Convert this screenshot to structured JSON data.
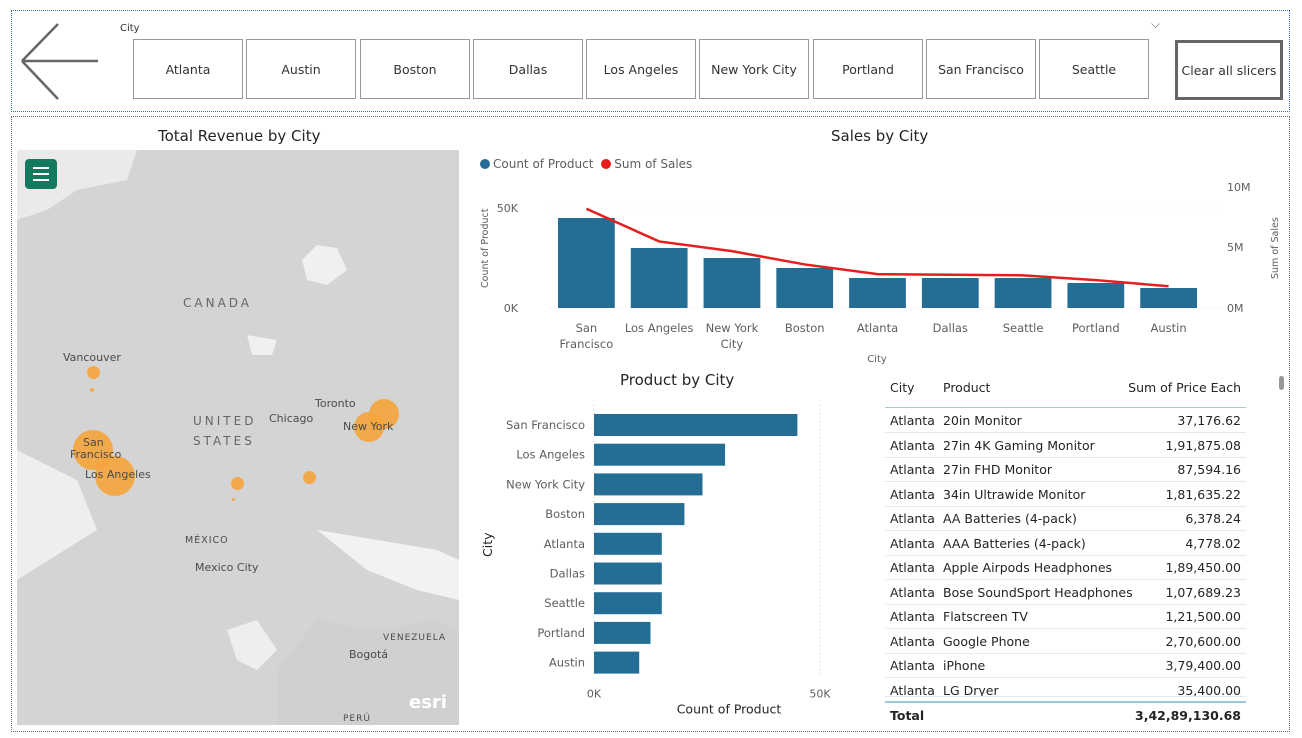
{
  "slicer": {
    "title": "City",
    "cities": [
      "Atlanta",
      "Austin",
      "Boston",
      "Dallas",
      "Los Angeles",
      "New York City",
      "Portland",
      "San Francisco",
      "Seattle"
    ],
    "clear_label": "Clear all slicers",
    "chevron": "chevron-down-icon"
  },
  "back_button": {
    "icon": "back-arrow-icon"
  },
  "map": {
    "title": "Total Revenue by City",
    "labels": {
      "canada": "CANADA",
      "united": "UNITED",
      "states": "STATES",
      "mexico": "MÉXICO",
      "vancouver": "Vancouver",
      "chicago": "Chicago",
      "toronto": "Toronto",
      "new_york": "New York",
      "san": "San",
      "francisco": "Francisco",
      "los_angeles": "Los Angeles",
      "mexico_city": "Mexico City",
      "venezuela": "VENEZUELA",
      "bogota": "Bogotá",
      "peru": "PERÚ",
      "esri": "esri"
    },
    "menu_icon": "hamburger-menu-icon"
  },
  "sales_chart": {
    "title": "Sales by City",
    "legend": {
      "count": "Count of Product",
      "sum": "Sum of Sales"
    },
    "colors": {
      "bar": "#246d95",
      "line": "#e81d1d"
    },
    "left_axis_title": "Count of Product",
    "right_axis_title": "Sum of Sales",
    "x_axis_title": "City",
    "left_ticks": [
      "50K",
      "0K"
    ],
    "right_ticks": [
      "10M",
      "5M",
      "0M"
    ]
  },
  "product_chart": {
    "title": "Product by City",
    "y_axis_title": "City",
    "x_axis_title": "Count of Product",
    "x_ticks": [
      "0K",
      "50K"
    ]
  },
  "table": {
    "headers": {
      "city": "City",
      "product": "Product",
      "price": "Sum of Price Each"
    },
    "rows": [
      {
        "city": "Atlanta",
        "product": "20in Monitor",
        "price": "37,176.62"
      },
      {
        "city": "Atlanta",
        "product": "27in 4K Gaming Monitor",
        "price": "1,91,875.08"
      },
      {
        "city": "Atlanta",
        "product": "27in FHD Monitor",
        "price": "87,594.16"
      },
      {
        "city": "Atlanta",
        "product": "34in Ultrawide Monitor",
        "price": "1,81,635.22"
      },
      {
        "city": "Atlanta",
        "product": "AA Batteries (4-pack)",
        "price": "6,378.24"
      },
      {
        "city": "Atlanta",
        "product": "AAA Batteries (4-pack)",
        "price": "4,778.02"
      },
      {
        "city": "Atlanta",
        "product": "Apple Airpods Headphones",
        "price": "1,89,450.00"
      },
      {
        "city": "Atlanta",
        "product": "Bose SoundSport Headphones",
        "price": "1,07,689.23"
      },
      {
        "city": "Atlanta",
        "product": "Flatscreen TV",
        "price": "1,21,500.00"
      },
      {
        "city": "Atlanta",
        "product": "Google Phone",
        "price": "2,70,600.00"
      },
      {
        "city": "Atlanta",
        "product": "iPhone",
        "price": "3,79,400.00"
      },
      {
        "city": "Atlanta",
        "product": "LG Dryer",
        "price": "35,400.00"
      }
    ],
    "total_label": "Total",
    "total_value": "3,42,89,130.68"
  },
  "chart_data": [
    {
      "type": "bar",
      "title": "Sales by City",
      "categories": [
        "San Francisco",
        "Los Angeles",
        "New York City",
        "Boston",
        "Atlanta",
        "Dallas",
        "Seattle",
        "Portland",
        "Austin"
      ],
      "series": [
        {
          "name": "Count of Product",
          "type": "bar",
          "axis": "left",
          "values": [
            45000,
            30000,
            25000,
            20000,
            15000,
            15000,
            15000,
            12500,
            10000
          ]
        },
        {
          "name": "Sum of Sales",
          "type": "line",
          "axis": "right",
          "values": [
            8200000,
            5500000,
            4700000,
            3600000,
            2800000,
            2750000,
            2700000,
            2300000,
            1800000
          ]
        }
      ],
      "xlabel": "City",
      "ylabel": "Count of Product",
      "y2label": "Sum of Sales",
      "ylim": [
        0,
        50000
      ],
      "y2lim": [
        0,
        10000000
      ],
      "legend": "top-left",
      "grid": true
    },
    {
      "type": "bar",
      "orientation": "horizontal",
      "title": "Product by City",
      "categories": [
        "San Francisco",
        "Los Angeles",
        "New York City",
        "Boston",
        "Atlanta",
        "Dallas",
        "Seattle",
        "Portland",
        "Austin"
      ],
      "values": [
        45000,
        29000,
        24000,
        20000,
        15000,
        15000,
        15000,
        12500,
        10000
      ],
      "xlabel": "Count of Product",
      "ylabel": "City",
      "xlim": [
        0,
        50000
      ],
      "grid": true
    }
  ]
}
